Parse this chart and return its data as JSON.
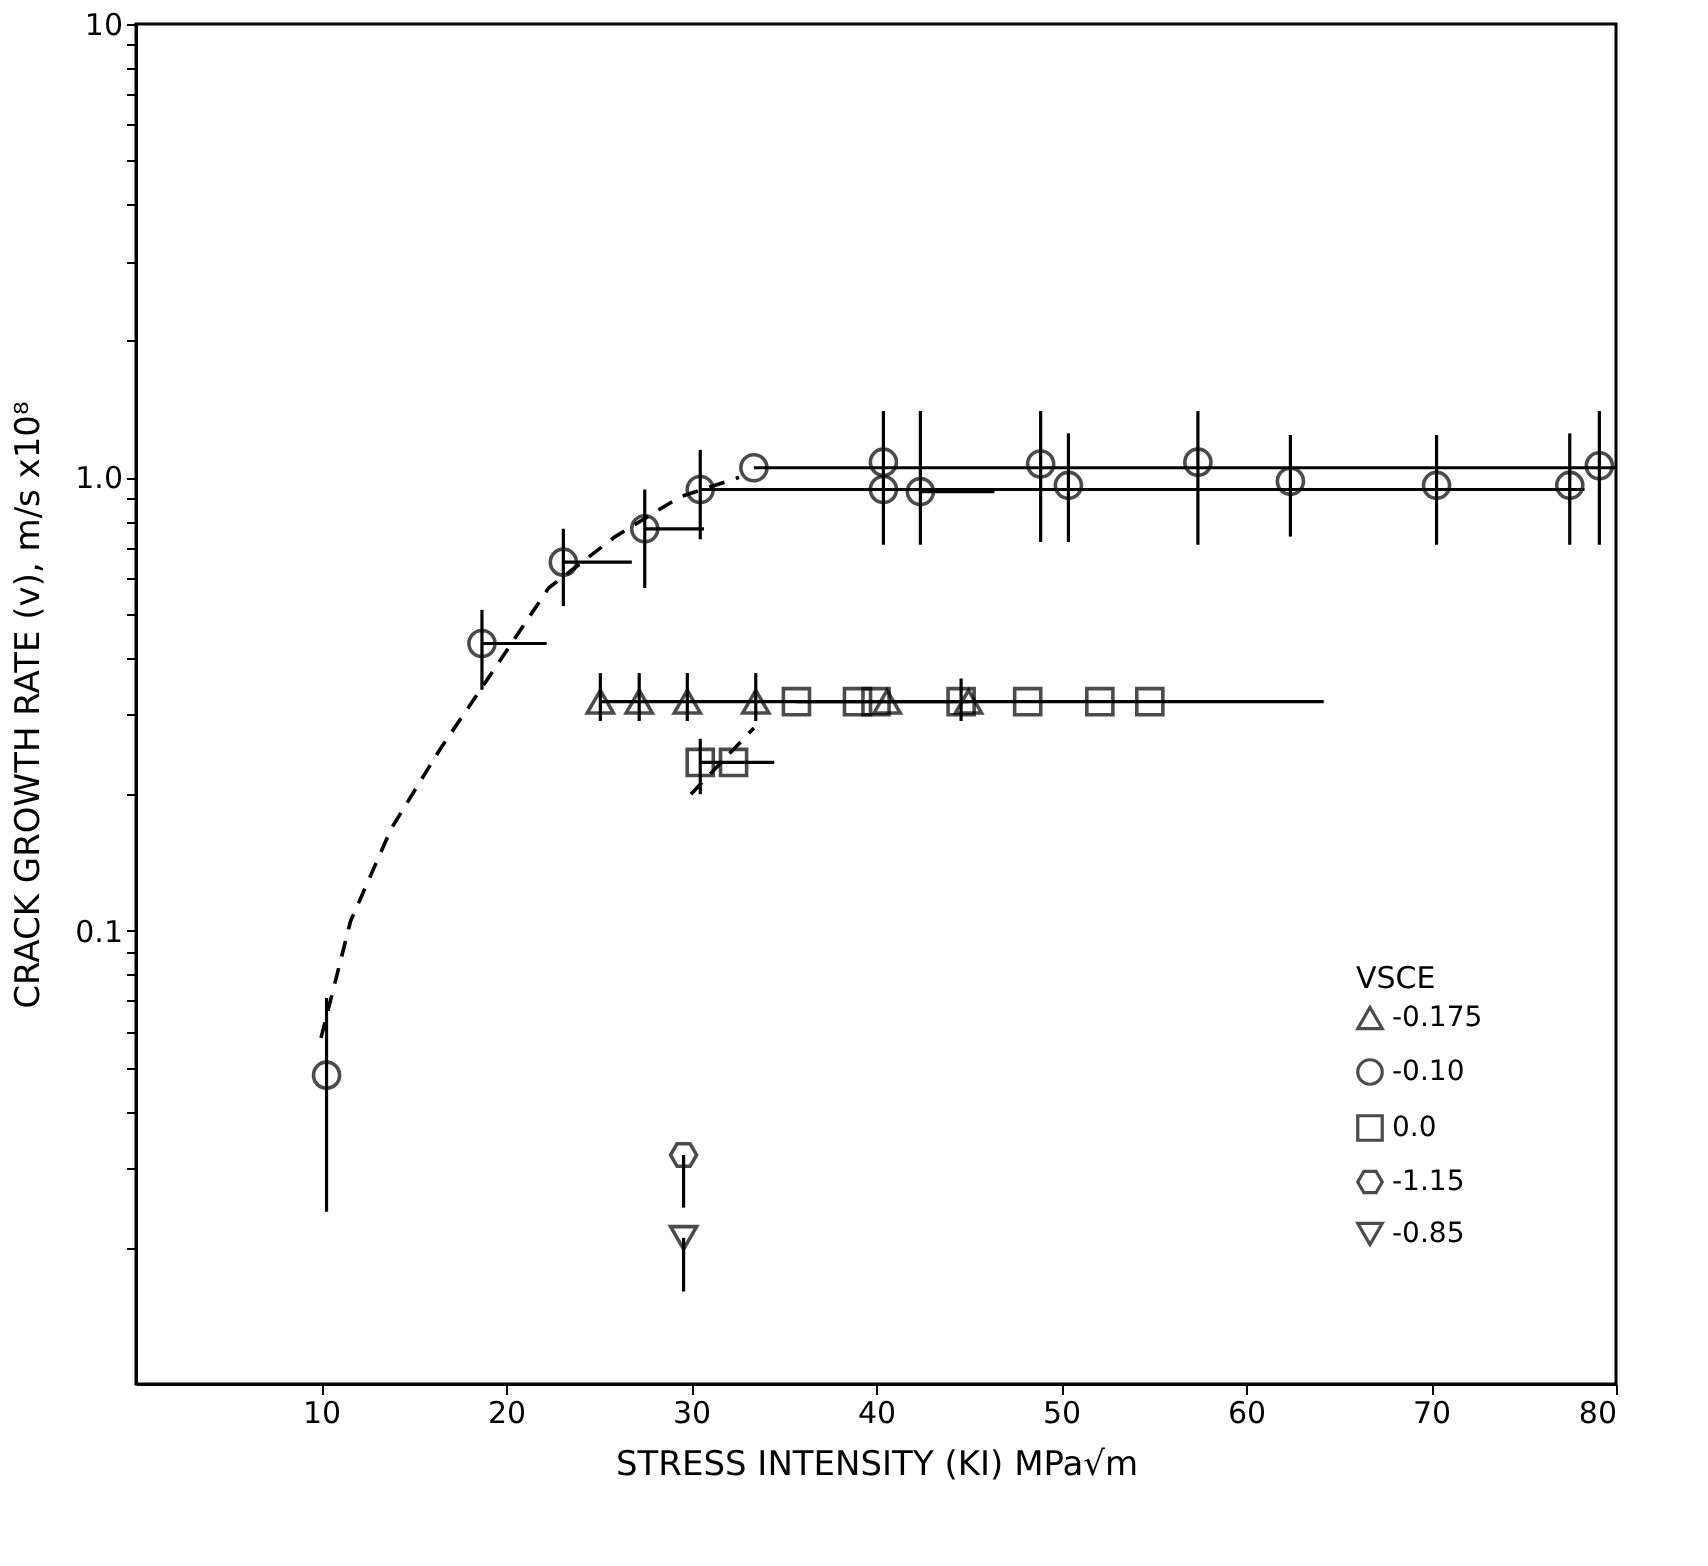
{
  "chart_data": {
    "type": "scatter",
    "xlabel": "STRESS INTENSITY (KI) MPa√m",
    "ylabel": "CRACK GROWTH RATE (v), m/s x10⁸",
    "legend_title": "VSCE",
    "legend": "bottom right",
    "grid": false,
    "log": "y",
    "xlim": [
      0,
      80
    ],
    "xticks": [
      10,
      20,
      30,
      40,
      50,
      60,
      70,
      80
    ],
    "ylim": [
      0.01,
      10
    ],
    "yticks": [
      {
        "value": 0.02,
        "label": null
      },
      {
        "value": 0.03,
        "label": null
      },
      {
        "value": 0.04,
        "label": null
      },
      {
        "value": 0.05,
        "label": null
      },
      {
        "value": 0.06,
        "label": null
      },
      {
        "value": 0.07,
        "label": null
      },
      {
        "value": 0.08,
        "label": null
      },
      {
        "value": 0.09,
        "label": null
      },
      {
        "value": 0.1,
        "label": "0.1"
      },
      {
        "value": 0.2,
        "label": null
      },
      {
        "value": 0.3,
        "label": null
      },
      {
        "value": 0.4,
        "label": null
      },
      {
        "value": 0.5,
        "label": null
      },
      {
        "value": 0.6,
        "label": null
      },
      {
        "value": 0.7,
        "label": null
      },
      {
        "value": 0.8,
        "label": null
      },
      {
        "value": 0.9,
        "label": null
      },
      {
        "value": 1,
        "label": "1.0"
      },
      {
        "value": 2,
        "label": null
      },
      {
        "value": 3,
        "label": null
      },
      {
        "value": 4,
        "label": null
      },
      {
        "value": 5,
        "label": null
      },
      {
        "value": 6,
        "label": null
      },
      {
        "value": 7,
        "label": null
      },
      {
        "value": 8,
        "label": null
      },
      {
        "value": 9,
        "label": null
      },
      {
        "value": 10,
        "label": "10"
      }
    ],
    "series": [
      {
        "name": "-0.175",
        "color": "#000000",
        "marker": "triangle",
        "x": [
          25.1,
          27.2,
          29.8,
          33.5,
          40.6,
          45.0
        ],
        "values": [
          0.32,
          0.32,
          0.32,
          0.32,
          0.32,
          0.32
        ],
        "errors": [
          [
            0.29,
            0.37
          ],
          [
            0.29,
            0.37
          ],
          [
            0.29,
            0.37
          ],
          [
            0.29,
            0.37
          ],
          null,
          null
        ],
        "xerrors": [
          [
            25.1,
            45.0
          ],
          null,
          null,
          null,
          null,
          null
        ]
      },
      {
        "name": "-0.10",
        "color": "#000000",
        "marker": "circle",
        "x": [
          10.3,
          18.7,
          23.1,
          27.5,
          30.5,
          33.4,
          40.4,
          40.4,
          42.4,
          48.9,
          50.4,
          57.4,
          62.4,
          70.3,
          77.5,
          79.1
        ],
        "values": [
          0.048,
          0.43,
          0.65,
          0.77,
          0.94,
          1.05,
          1.08,
          0.94,
          0.93,
          1.07,
          0.96,
          1.08,
          0.98,
          0.96,
          0.96,
          1.06
        ],
        "errors": [
          [
            0.024,
            0.071
          ],
          [
            0.34,
            0.51
          ],
          [
            0.52,
            0.77
          ],
          [
            0.57,
            0.94
          ],
          [
            0.73,
            1.15
          ],
          null,
          [
            0.71,
            1.4
          ],
          null,
          [
            0.71,
            1.4
          ],
          [
            0.72,
            1.4
          ],
          [
            0.72,
            1.25
          ],
          [
            0.71,
            1.4
          ],
          [
            0.74,
            1.24
          ],
          [
            0.71,
            1.24
          ],
          [
            0.71,
            1.25
          ],
          [
            0.71,
            1.4
          ]
        ],
        "xerrors": [
          null,
          [
            18.7,
            22.2
          ],
          [
            23.1,
            26.8
          ],
          [
            27.5,
            30.7
          ],
          [
            30.5,
            78.3
          ],
          [
            33.4,
            80
          ],
          null,
          null,
          [
            42.4,
            46.4
          ],
          null,
          null,
          null,
          null,
          null,
          null,
          null
        ]
      },
      {
        "name": "0.0",
        "color": "#000000",
        "marker": "square",
        "x": [
          35.7,
          39.0,
          40.0,
          44.6,
          48.2,
          52.1,
          54.8,
          30.5,
          32.3
        ],
        "values": [
          0.32,
          0.32,
          0.32,
          0.32,
          0.32,
          0.32,
          0.32,
          0.235,
          0.235
        ],
        "errors": [
          null,
          null,
          null,
          [
            0.29,
            0.36
          ],
          null,
          null,
          null,
          [
            0.2,
            0.265
          ],
          null
        ],
        "xerrors": [
          [
            35.7,
            64.2
          ],
          null,
          null,
          null,
          null,
          null,
          null,
          [
            30.5,
            34.5
          ],
          null
        ]
      },
      {
        "name": "-1.15",
        "color": "#000000",
        "x": [
          29.6
        ],
        "values": [
          0.032
        ],
        "errors": [
          [
            0.0245,
            0.032
          ]
        ]
      },
      {
        "name": "-0.85",
        "color": "#000000",
        "marker": "triangle-down",
        "x": [
          29.6
        ],
        "values": [
          0.021
        ],
        "errors": [
          [
            0.016,
            0.021
          ]
        ]
      },
      {
        "type": "line",
        "color": "#000000",
        "line_style": "dashed",
        "marker": "none",
        "x": [
          10.0,
          11.6,
          13.8,
          16.4,
          19.6,
          22.3,
          25.9,
          29.4,
          32.6
        ],
        "values": [
          0.058,
          0.105,
          0.168,
          0.25,
          0.39,
          0.57,
          0.74,
          0.905,
          1.0
        ]
      },
      {
        "type": "line",
        "color": "#000000",
        "line_style": "dashed",
        "marker": "none",
        "x": [
          30.0,
          33.4
        ],
        "values": [
          0.2,
          0.28
        ]
      }
    ]
  }
}
